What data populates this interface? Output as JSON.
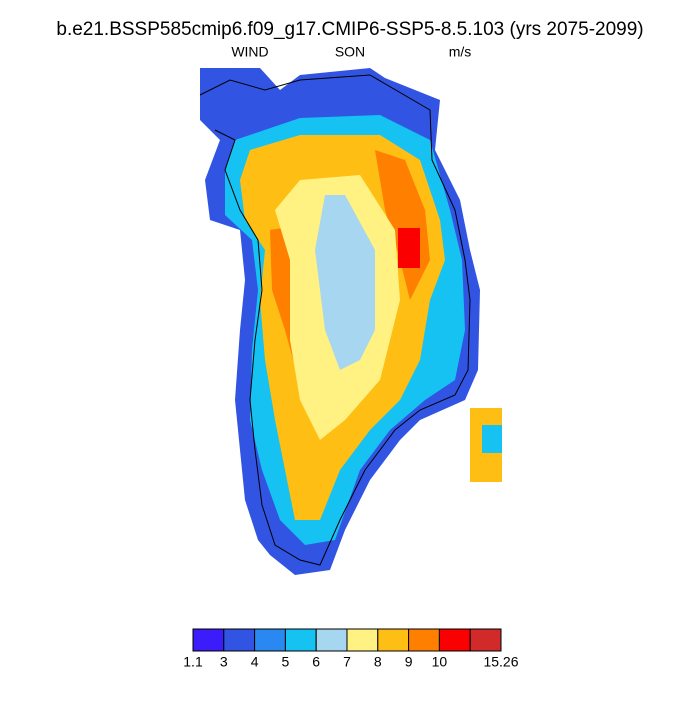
{
  "title": "b.e21.BSSP585cmip6.f09_g17.CMIP6-SSP5-8.5.103 (yrs 2075-2099)",
  "left_label": "WIND",
  "center_label": "SON",
  "right_label": "m/s",
  "colorbar": {
    "colors": [
      "#3c1cfa",
      "#3155e2",
      "#2a88f2",
      "#15c2f2",
      "#a6d6f0",
      "#fff282",
      "#ffbe14",
      "#ff7f00",
      "#fa0000",
      "#d12a2a"
    ],
    "levels": [
      1.1,
      3,
      4,
      5,
      6,
      7,
      8,
      9,
      10,
      null,
      15.26
    ]
  }
}
